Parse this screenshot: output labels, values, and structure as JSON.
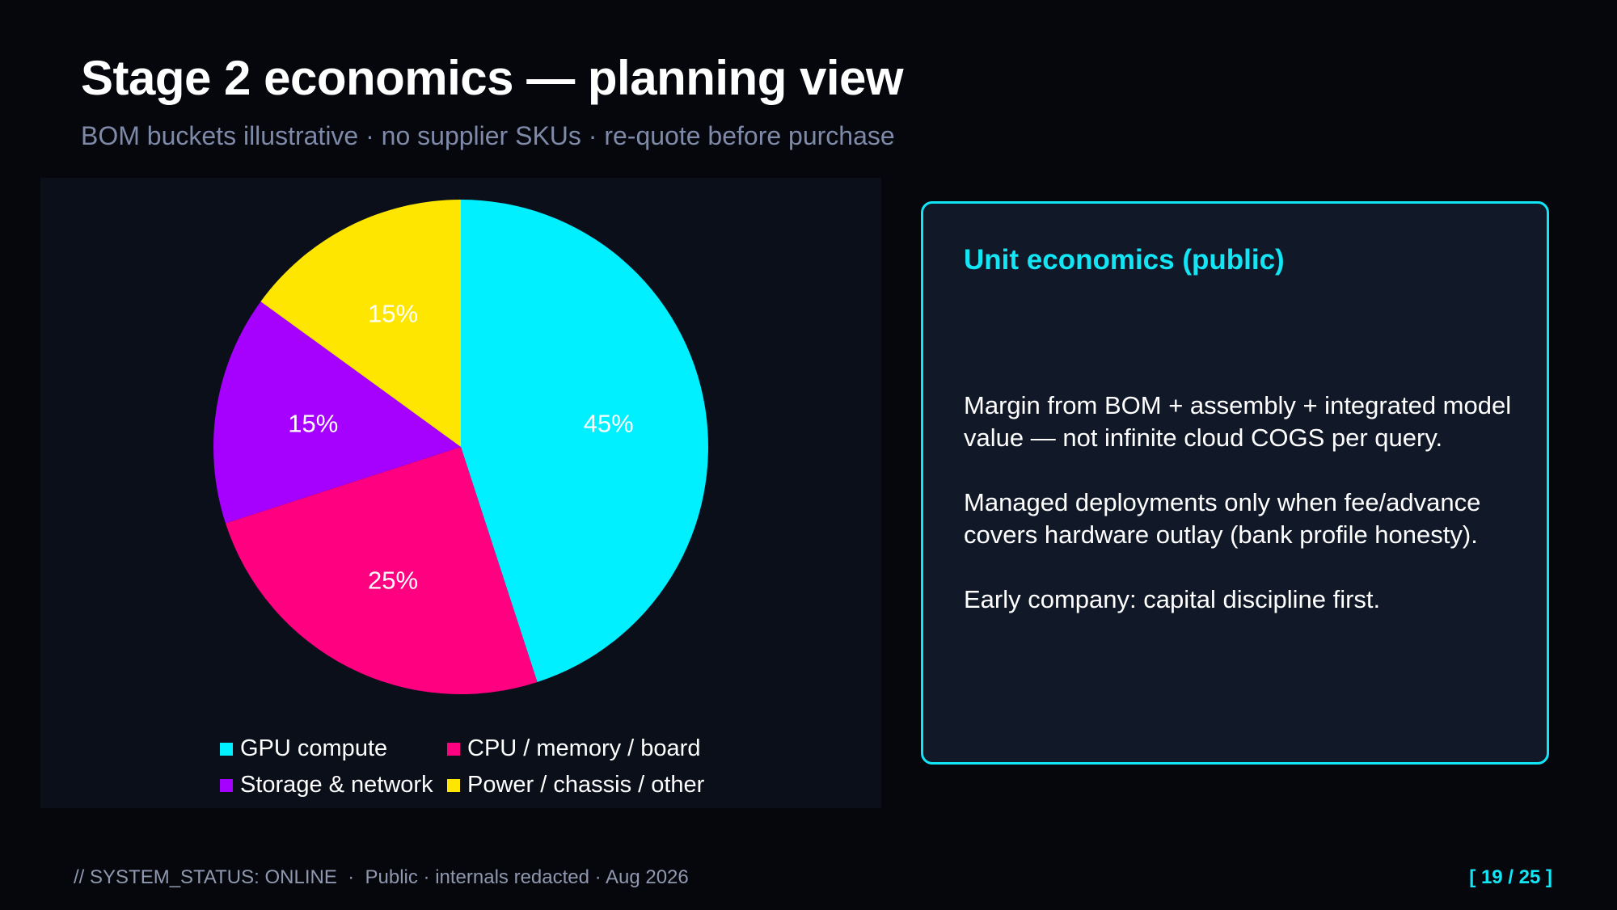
{
  "header": {
    "title": "Stage 2 economics — planning view",
    "subtitle": "BOM buckets illustrative · no supplier SKUs · re-quote before purchase"
  },
  "chart_data": {
    "type": "pie",
    "title": "",
    "categories": [
      "GPU compute",
      "CPU / memory / board",
      "Storage & network",
      "Power / chassis / other"
    ],
    "values": [
      45,
      25,
      15,
      15
    ],
    "labels": [
      "45%",
      "25%",
      "15%",
      "15%"
    ],
    "colors": [
      "#00f0ff",
      "#ff0080",
      "#a600ff",
      "#ffe600"
    ],
    "legend_position": "bottom"
  },
  "card": {
    "title": "Unit economics (public)",
    "paragraphs": [
      "Margin from BOM + assembly + integrated model value — not infinite cloud COGS per query.",
      "Managed deployments only when fee/advance covers hardware outlay (bank profile honesty).",
      "Early company: capital discipline first."
    ],
    "border_color": "#12e6f5"
  },
  "footer": {
    "status": "// SYSTEM_STATUS: ONLINE  ·  Public · internals redacted · Aug 2026",
    "page": "[ 19 / 25 ]"
  }
}
